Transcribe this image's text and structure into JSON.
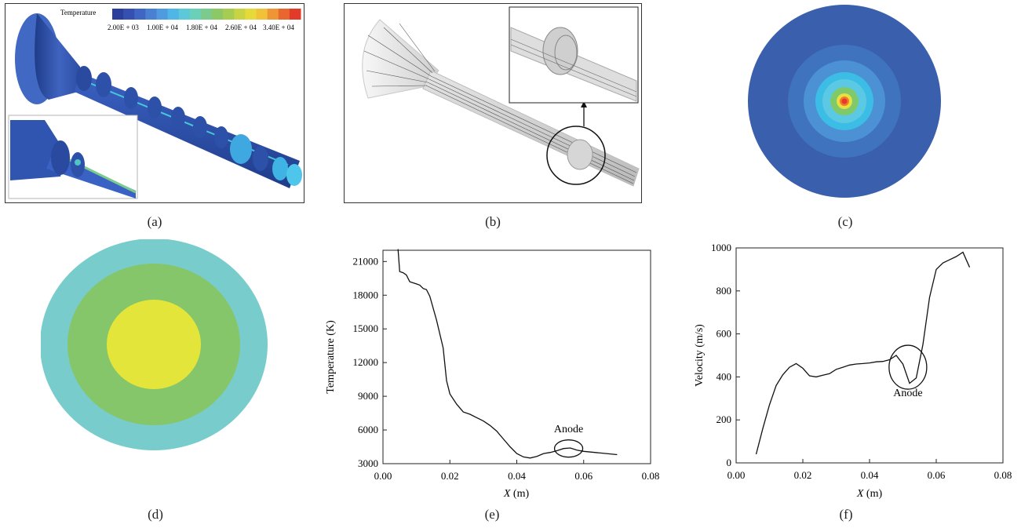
{
  "captions": [
    "(a)",
    "(b)",
    "(c)",
    "(d)",
    "(e)",
    "(f)"
  ],
  "panel_a": {
    "legend_title": "Temperature",
    "legend_labels": [
      "2.00E + 03",
      "1.00E + 04",
      "1.80E + 04",
      "2.60E + 04",
      "3.40E + 04"
    ],
    "legend_colors": [
      "#2b3f9a",
      "#3550b0",
      "#3f66c2",
      "#4a80d2",
      "#4f9bdf",
      "#4fb6e6",
      "#5cc8d8",
      "#6ad0b8",
      "#7acb8d",
      "#8cc966",
      "#a6cc52",
      "#c8d443",
      "#e6d93a",
      "#f2c13a",
      "#ee9636",
      "#e9672f",
      "#e23b2a"
    ]
  },
  "panel_c": {
    "ring_colors": [
      "#3a5fad",
      "#3f73be",
      "#4b91d4",
      "#3cbde6",
      "#5bc9e3",
      "#80c96a",
      "#e8e040",
      "#f27a2b",
      "#e8392b"
    ]
  },
  "panel_d": {
    "ring_colors": [
      "#78cccb",
      "#86c66a",
      "#e3e53a"
    ]
  },
  "chart_data": [
    {
      "type": "line",
      "xlabel_italic": "X",
      "xlabel_unit": " (m)",
      "ylabel": "Temperature (K)",
      "xlim": [
        0.0,
        0.08
      ],
      "ylim": [
        3000,
        22000
      ],
      "x_ticks": [
        "0.00",
        "0.02",
        "0.04",
        "0.06",
        "0.08"
      ],
      "y_ticks": [
        "3000",
        "6000",
        "9000",
        "12000",
        "15000",
        "18000",
        "21000"
      ],
      "annotation": "Anode",
      "x": [
        0.0045,
        0.005,
        0.006,
        0.007,
        0.008,
        0.009,
        0.01,
        0.011,
        0.012,
        0.013,
        0.014,
        0.016,
        0.018,
        0.019,
        0.02,
        0.022,
        0.024,
        0.026,
        0.028,
        0.03,
        0.032,
        0.034,
        0.036,
        0.038,
        0.04,
        0.042,
        0.044,
        0.046,
        0.048,
        0.05,
        0.052,
        0.054,
        0.056,
        0.058,
        0.06,
        0.065,
        0.07
      ],
      "y": [
        22100,
        20100,
        20000,
        19800,
        19200,
        19100,
        19000,
        18900,
        18600,
        18500,
        17900,
        15800,
        13300,
        10400,
        9200,
        8300,
        7600,
        7400,
        7100,
        6800,
        6400,
        5900,
        5200,
        4500,
        3900,
        3600,
        3500,
        3650,
        3900,
        4000,
        4150,
        4350,
        4400,
        4200,
        4100,
        3950,
        3800
      ]
    },
    {
      "type": "line",
      "xlabel_italic": "X",
      "xlabel_unit": " (m)",
      "ylabel": "Velocity (m/s)",
      "xlim": [
        0.0,
        0.08
      ],
      "ylim": [
        0,
        1000
      ],
      "x_ticks": [
        "0.00",
        "0.02",
        "0.04",
        "0.06",
        "0.08"
      ],
      "y_ticks": [
        "0",
        "200",
        "400",
        "600",
        "800",
        "1000"
      ],
      "annotation": "Anode",
      "x": [
        0.006,
        0.008,
        0.01,
        0.012,
        0.014,
        0.016,
        0.018,
        0.02,
        0.022,
        0.024,
        0.026,
        0.028,
        0.03,
        0.032,
        0.034,
        0.036,
        0.038,
        0.04,
        0.042,
        0.044,
        0.046,
        0.048,
        0.05,
        0.052,
        0.054,
        0.056,
        0.058,
        0.06,
        0.062,
        0.064,
        0.066,
        0.068,
        0.07
      ],
      "y": [
        40,
        160,
        270,
        360,
        410,
        445,
        462,
        440,
        405,
        400,
        408,
        415,
        435,
        445,
        455,
        460,
        462,
        465,
        470,
        472,
        480,
        500,
        460,
        370,
        395,
        550,
        770,
        900,
        930,
        945,
        960,
        980,
        910
      ]
    }
  ]
}
